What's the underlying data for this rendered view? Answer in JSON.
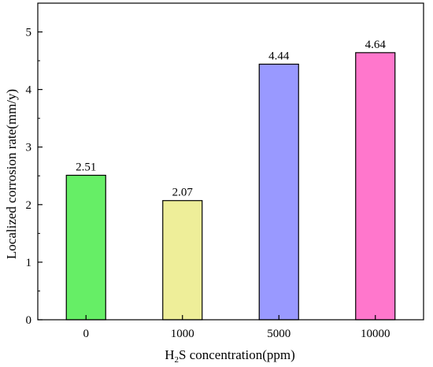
{
  "chart_data": {
    "type": "bar",
    "categories": [
      "0",
      "1000",
      "5000",
      "10000"
    ],
    "values": [
      2.51,
      2.07,
      4.44,
      4.64
    ],
    "data_labels": [
      "2.51",
      "2.07",
      "4.44",
      "4.64"
    ],
    "colors": [
      "#66ee66",
      "#eeee99",
      "#9999ff",
      "#ff77cc"
    ],
    "xlabel": {
      "prefix": "H",
      "sub": "2",
      "suffix": "S concentration(ppm)"
    },
    "ylabel": "Localized corrosion rate(mm/y)",
    "ylim": [
      0,
      5.5
    ],
    "yticks": [
      0,
      1,
      2,
      3,
      4,
      5
    ],
    "ytick_labels": [
      "0",
      "1",
      "2",
      "3",
      "4",
      "5"
    ],
    "grid": false,
    "legend": "none"
  }
}
